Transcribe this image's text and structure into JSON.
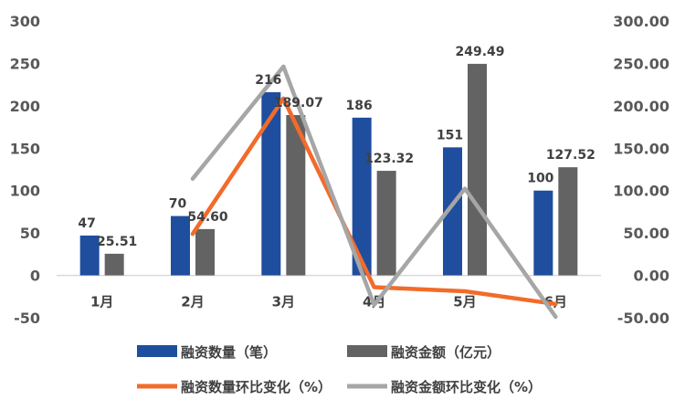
{
  "chart_data": {
    "type": "bar",
    "categories": [
      "1月",
      "2月",
      "3月",
      "4月",
      "5月",
      "6月"
    ],
    "series": [
      {
        "name": "融资数量（笔）",
        "type": "bar",
        "axis": "left",
        "color": "#1f4e9e",
        "values": [
          47,
          70,
          216,
          186,
          151,
          100
        ],
        "labels": [
          "47",
          "70",
          "216",
          "186",
          "151",
          "100"
        ]
      },
      {
        "name": "融资金额（亿元）",
        "type": "bar",
        "axis": "left",
        "color": "#636363",
        "values": [
          25.51,
          54.6,
          189.07,
          123.32,
          249.49,
          127.52
        ],
        "labels": [
          "25.51",
          "54.60",
          "189.07",
          "123.32",
          "249.49",
          "127.52"
        ]
      },
      {
        "name": "融资数量环比变化（%）",
        "type": "line",
        "axis": "right",
        "color": "#f26b2a",
        "values": [
          null,
          48.9,
          208.6,
          -13.9,
          -18.8,
          -33.8
        ]
      },
      {
        "name": "融资金额环比变化（%）",
        "type": "line",
        "axis": "right",
        "color": "#a6a6a6",
        "values": [
          null,
          114.0,
          246.3,
          -34.8,
          102.3,
          -48.9
        ]
      }
    ],
    "y_left": {
      "min": -50,
      "max": 300,
      "step": 50,
      "tick_labels": [
        "-50",
        "0",
        "50",
        "100",
        "150",
        "200",
        "250",
        "300"
      ]
    },
    "y_right": {
      "min": -50,
      "max": 300,
      "step": 50,
      "tick_labels": [
        "-50.00",
        "0.00",
        "50.00",
        "100.00",
        "150.00",
        "200.00",
        "250.00",
        "300.00"
      ]
    },
    "legend_position": "bottom",
    "grid": false
  }
}
